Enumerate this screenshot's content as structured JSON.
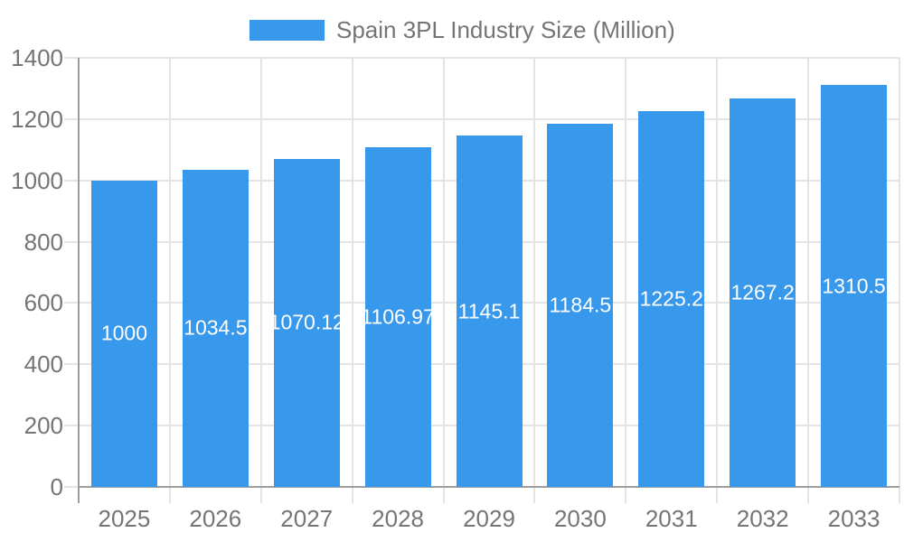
{
  "legend": {
    "series_label": "Spain 3PL Industry Size (Million)"
  },
  "colors": {
    "bar": "#3898EC",
    "axis_text": "#757575",
    "value_label_text": "#FFFFFF",
    "gridline": "#E4E4E4",
    "axis_line": "#9E9E9E",
    "background": "#FFFFFF"
  },
  "chart_data": {
    "type": "bar",
    "title": "Spain 3PL Industry Size (Million)",
    "categories": [
      "2025",
      "2026",
      "2027",
      "2028",
      "2029",
      "2030",
      "2031",
      "2032",
      "2033"
    ],
    "values": [
      1000,
      1034.5,
      1070.12,
      1106.97,
      1145.1,
      1184.5,
      1225.2,
      1267.2,
      1310.5
    ],
    "value_labels": [
      "1000",
      "1034.5",
      "1070.12",
      "1106.97",
      "1145.1",
      "1184.5",
      "1225.2",
      "1267.2",
      "1310.5"
    ],
    "xlabel": "",
    "ylabel": "",
    "ylim": [
      0,
      1400
    ],
    "yticks": [
      0,
      200,
      400,
      600,
      800,
      1000,
      1200,
      1400
    ],
    "ytick_labels": [
      "0",
      "200",
      "400",
      "600",
      "800",
      "1000",
      "1200",
      "1400"
    ],
    "grid": true,
    "legend_position": "top",
    "value_label_position": "center-of-bar",
    "bar_color": "#3898EC"
  }
}
